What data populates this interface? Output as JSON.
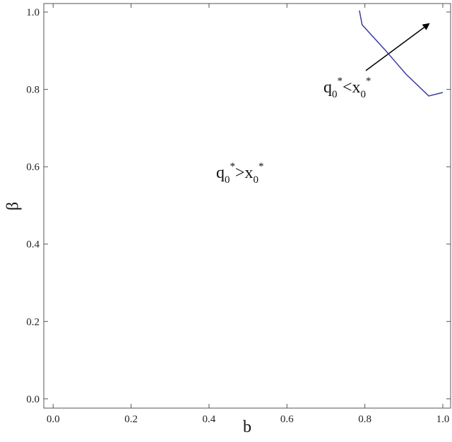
{
  "chart_data": {
    "type": "line",
    "xlabel": "b",
    "ylabel": "β",
    "xlim": [
      -0.024,
      1.02
    ],
    "ylim": [
      -0.024,
      1.022
    ],
    "xticks": [
      {
        "value": 0,
        "label": "0.0"
      },
      {
        "value": 0.2,
        "label": "0.2"
      },
      {
        "value": 0.4,
        "label": "0.4"
      },
      {
        "value": 0.6,
        "label": "0.6"
      },
      {
        "value": 0.8,
        "label": "0.8"
      },
      {
        "value": 1,
        "label": "1.0"
      }
    ],
    "yticks": [
      {
        "value": 0,
        "label": "0.0"
      },
      {
        "value": 0.2,
        "label": "0.2"
      },
      {
        "value": 0.4,
        "label": "0.4"
      },
      {
        "value": 0.6,
        "label": "0.6"
      },
      {
        "value": 0.8,
        "label": "0.8"
      },
      {
        "value": 1,
        "label": "1.0"
      }
    ],
    "x": [
      0.786,
      0.793,
      0.851,
      0.906,
      0.964,
      1.0
    ],
    "series": [
      {
        "color": "#3b3b9e",
        "values": [
          1.004,
          0.967,
          0.903,
          0.839,
          0.783,
          0.792
        ]
      }
    ],
    "annotations": [
      {
        "parts": [
          "q",
          "0",
          "*",
          ">",
          "x",
          "0",
          "*"
        ]
      },
      {
        "parts": [
          "q",
          "0",
          "*",
          "<",
          "x",
          "0",
          "*"
        ]
      }
    ]
  }
}
